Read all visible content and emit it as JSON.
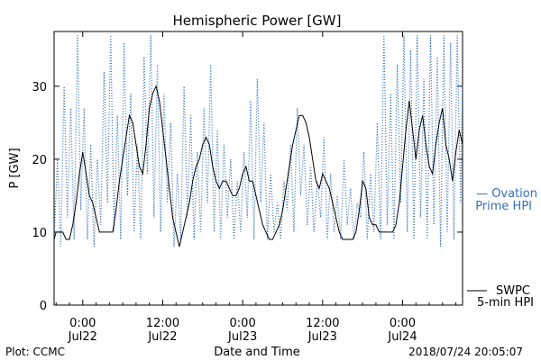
{
  "chart_data": {
    "type": "line",
    "title": "Hemispheric Power [GW]",
    "ylabel": "P [GW]",
    "xlabel": "Date and Time",
    "ylim": [
      0,
      37.5
    ],
    "yticks": [
      0,
      10,
      20,
      30
    ],
    "x_unit": "hours since 2018-07-22 00:00 UT",
    "xlim": [
      -4.3,
      57
    ],
    "xticks": [
      {
        "x": 0,
        "top": "0:00",
        "bottom": "Jul22"
      },
      {
        "x": 12,
        "top": "12:00",
        "bottom": "Jul22"
      },
      {
        "x": 24,
        "top": "0:00",
        "bottom": "Jul23"
      },
      {
        "x": 36,
        "top": "12:00",
        "bottom": "Jul23"
      },
      {
        "x": 48,
        "top": "0:00",
        "bottom": "Jul24"
      },
      {
        "x": 60,
        "top": "12:00",
        "bottom": "Jul24"
      }
    ],
    "grid": false,
    "series": [
      {
        "name": "SWPC 5-min HPI",
        "legend": [
          "SWPC",
          "5-min HPI"
        ],
        "color": "#000000",
        "style": "solid",
        "points": [
          [
            -4.3,
            9
          ],
          [
            -4.0,
            10
          ],
          [
            -3.0,
            10
          ],
          [
            -2.5,
            9
          ],
          [
            -2.0,
            9
          ],
          [
            -1.5,
            11
          ],
          [
            -1.0,
            14
          ],
          [
            -0.5,
            18
          ],
          [
            0,
            21
          ],
          [
            0.5,
            18
          ],
          [
            1.0,
            15
          ],
          [
            1.5,
            14
          ],
          [
            2.0,
            12
          ],
          [
            2.5,
            10
          ],
          [
            3.5,
            10
          ],
          [
            4.5,
            10
          ],
          [
            5.0,
            13
          ],
          [
            5.5,
            17
          ],
          [
            6.0,
            20
          ],
          [
            6.5,
            23
          ],
          [
            7.0,
            26
          ],
          [
            7.5,
            25
          ],
          [
            8.0,
            22
          ],
          [
            8.5,
            19
          ],
          [
            9.0,
            18
          ],
          [
            9.5,
            22
          ],
          [
            10.0,
            27
          ],
          [
            10.5,
            29
          ],
          [
            11.0,
            30
          ],
          [
            11.5,
            28
          ],
          [
            12.0,
            24
          ],
          [
            12.5,
            20
          ],
          [
            13.0,
            16
          ],
          [
            13.5,
            12
          ],
          [
            14.0,
            10
          ],
          [
            14.5,
            8
          ],
          [
            15.0,
            10
          ],
          [
            15.5,
            12
          ],
          [
            16.0,
            14
          ],
          [
            16.5,
            17
          ],
          [
            17.0,
            19
          ],
          [
            17.5,
            20
          ],
          [
            18.0,
            22
          ],
          [
            18.5,
            23
          ],
          [
            19.0,
            22
          ],
          [
            19.5,
            19
          ],
          [
            20.0,
            17
          ],
          [
            20.5,
            16
          ],
          [
            21.0,
            17
          ],
          [
            21.5,
            17
          ],
          [
            22.0,
            16
          ],
          [
            22.5,
            15
          ],
          [
            23.0,
            15
          ],
          [
            23.5,
            16
          ],
          [
            24.0,
            18
          ],
          [
            24.5,
            19
          ],
          [
            25.0,
            17
          ],
          [
            25.5,
            17
          ],
          [
            26.0,
            15
          ],
          [
            26.5,
            13
          ],
          [
            27.0,
            11
          ],
          [
            27.5,
            10
          ],
          [
            28.0,
            9
          ],
          [
            28.5,
            9
          ],
          [
            29.0,
            10
          ],
          [
            29.5,
            11
          ],
          [
            30.0,
            13
          ],
          [
            30.5,
            16
          ],
          [
            31.0,
            19
          ],
          [
            31.5,
            22
          ],
          [
            32.0,
            24
          ],
          [
            32.5,
            26
          ],
          [
            33.0,
            26
          ],
          [
            33.5,
            25
          ],
          [
            34.0,
            23
          ],
          [
            34.5,
            20
          ],
          [
            35.0,
            17
          ],
          [
            35.5,
            16
          ],
          [
            36.0,
            18
          ],
          [
            36.5,
            17
          ],
          [
            37.0,
            16
          ],
          [
            37.5,
            14
          ],
          [
            38.0,
            12
          ],
          [
            38.5,
            10
          ],
          [
            39.0,
            9
          ],
          [
            39.5,
            9
          ],
          [
            40.0,
            9
          ],
          [
            40.5,
            9
          ],
          [
            41.0,
            10
          ],
          [
            41.5,
            13
          ],
          [
            42.0,
            17
          ],
          [
            42.5,
            16
          ],
          [
            43.0,
            12
          ],
          [
            43.5,
            11
          ],
          [
            44.0,
            11
          ],
          [
            44.5,
            10
          ],
          [
            45.0,
            10
          ],
          [
            46.0,
            10
          ],
          [
            46.5,
            10
          ],
          [
            47.0,
            11
          ],
          [
            47.5,
            14
          ],
          [
            48.0,
            19
          ],
          [
            48.5,
            24
          ],
          [
            49.0,
            28
          ],
          [
            49.5,
            24
          ],
          [
            50.0,
            20
          ],
          [
            50.5,
            24
          ],
          [
            51.0,
            26
          ],
          [
            51.5,
            22
          ],
          [
            52.0,
            19
          ],
          [
            52.5,
            18
          ],
          [
            53.0,
            22
          ],
          [
            53.5,
            25
          ],
          [
            54.0,
            27
          ],
          [
            54.5,
            22
          ],
          [
            55.0,
            20
          ],
          [
            55.5,
            17
          ],
          [
            56.0,
            21
          ],
          [
            56.5,
            24
          ],
          [
            57.0,
            22
          ]
        ]
      },
      {
        "name": "Ovation Prime HPI",
        "legend": [
          "— Ovation",
          "Prime HPI"
        ],
        "color": "#2f6fc0",
        "style": "dotted",
        "points": [
          [
            -4.3,
            9
          ],
          [
            -3.8,
            20
          ],
          [
            -3.3,
            8
          ],
          [
            -2.8,
            30
          ],
          [
            -2.3,
            12
          ],
          [
            -1.8,
            27
          ],
          [
            -1.3,
            9
          ],
          [
            -0.8,
            37
          ],
          [
            -0.3,
            13
          ],
          [
            0.2,
            27
          ],
          [
            0.7,
            9
          ],
          [
            1.2,
            22
          ],
          [
            1.7,
            8
          ],
          [
            2.2,
            20
          ],
          [
            2.7,
            11
          ],
          [
            3.2,
            32
          ],
          [
            3.7,
            14
          ],
          [
            4.2,
            37
          ],
          [
            4.7,
            10
          ],
          [
            5.2,
            26
          ],
          [
            5.7,
            9
          ],
          [
            6.2,
            36
          ],
          [
            6.7,
            15
          ],
          [
            7.2,
            29
          ],
          [
            7.7,
            10
          ],
          [
            8.2,
            22
          ],
          [
            8.7,
            9
          ],
          [
            9.2,
            34
          ],
          [
            9.7,
            18
          ],
          [
            10.2,
            37
          ],
          [
            10.7,
            12
          ],
          [
            11.2,
            33
          ],
          [
            11.7,
            10
          ],
          [
            12.2,
            29
          ],
          [
            12.7,
            14
          ],
          [
            13.2,
            25
          ],
          [
            13.7,
            8
          ],
          [
            14.2,
            18
          ],
          [
            14.7,
            9
          ],
          [
            15.2,
            30
          ],
          [
            15.7,
            12
          ],
          [
            16.2,
            26
          ],
          [
            16.7,
            9
          ],
          [
            17.2,
            21
          ],
          [
            17.7,
            10
          ],
          [
            18.2,
            27
          ],
          [
            18.7,
            14
          ],
          [
            19.2,
            33
          ],
          [
            19.7,
            10
          ],
          [
            20.2,
            24
          ],
          [
            20.7,
            9
          ],
          [
            21.2,
            22
          ],
          [
            21.7,
            12
          ],
          [
            22.2,
            20
          ],
          [
            22.7,
            9
          ],
          [
            23.2,
            17
          ],
          [
            23.7,
            10
          ],
          [
            24.2,
            21
          ],
          [
            24.7,
            12
          ],
          [
            25.2,
            28
          ],
          [
            25.7,
            9
          ],
          [
            26.2,
            31
          ],
          [
            26.7,
            14
          ],
          [
            27.2,
            25
          ],
          [
            27.7,
            9
          ],
          [
            28.2,
            18
          ],
          [
            28.7,
            10
          ],
          [
            29.2,
            14
          ],
          [
            29.7,
            9
          ],
          [
            30.2,
            17
          ],
          [
            30.7,
            13
          ],
          [
            31.2,
            22
          ],
          [
            31.7,
            10
          ],
          [
            32.2,
            27
          ],
          [
            32.7,
            15
          ],
          [
            33.2,
            22
          ],
          [
            33.7,
            11
          ],
          [
            34.2,
            19
          ],
          [
            34.7,
            10
          ],
          [
            35.2,
            17
          ],
          [
            35.7,
            12
          ],
          [
            36.2,
            23
          ],
          [
            36.7,
            9
          ],
          [
            37.2,
            18
          ],
          [
            37.7,
            10
          ],
          [
            38.2,
            15
          ],
          [
            38.7,
            9
          ],
          [
            39.2,
            20
          ],
          [
            39.7,
            11
          ],
          [
            40.2,
            16
          ],
          [
            40.7,
            9
          ],
          [
            41.2,
            14
          ],
          [
            41.7,
            12
          ],
          [
            42.2,
            21
          ],
          [
            42.7,
            9
          ],
          [
            43.2,
            18
          ],
          [
            43.7,
            10
          ],
          [
            44.2,
            25
          ],
          [
            44.7,
            9
          ],
          [
            45.2,
            37
          ],
          [
            45.7,
            11
          ],
          [
            46.2,
            29
          ],
          [
            46.7,
            9
          ],
          [
            47.2,
            33
          ],
          [
            47.7,
            14
          ],
          [
            48.2,
            37
          ],
          [
            48.7,
            10
          ],
          [
            49.2,
            35
          ],
          [
            49.7,
            9
          ],
          [
            50.2,
            37
          ],
          [
            50.7,
            12
          ],
          [
            51.2,
            31
          ],
          [
            51.7,
            9
          ],
          [
            52.2,
            37
          ],
          [
            52.7,
            11
          ],
          [
            53.2,
            34
          ],
          [
            53.7,
            8
          ],
          [
            54.2,
            37
          ],
          [
            54.7,
            10
          ],
          [
            55.2,
            36
          ],
          [
            55.7,
            9
          ],
          [
            56.2,
            37
          ],
          [
            56.7,
            14
          ],
          [
            57.0,
            30
          ]
        ]
      }
    ]
  },
  "footer": {
    "left": "Plot: CCMC",
    "right": "2018/07/24 20:05:07"
  }
}
